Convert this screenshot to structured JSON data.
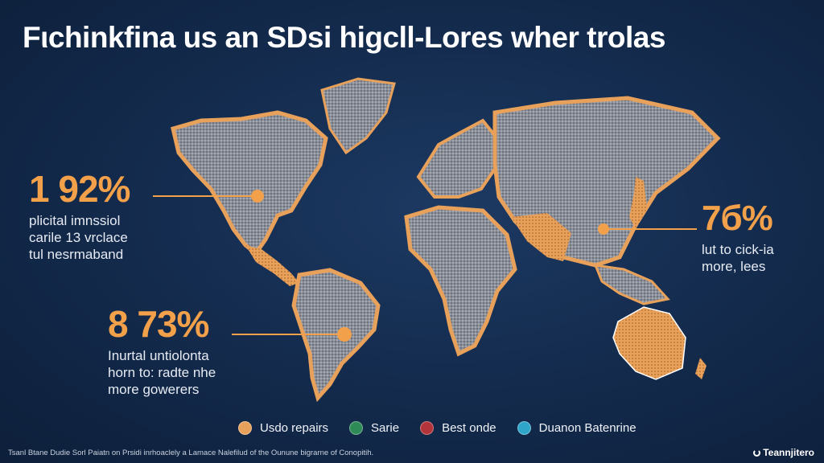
{
  "title": "Fιchinkfina us an SDsi higcll-Lores wher trolas",
  "colors": {
    "background": "#142c4f",
    "land_gray": "#8b8f99",
    "highlight_orange": "#e8a15b",
    "accent_orange": "#f2a14a",
    "legend_green": "#2e8b57",
    "legend_red": "#b3343a",
    "legend_cyan": "#2fa6c9"
  },
  "callouts": [
    {
      "value": "1 92%",
      "lines": [
        "plicital imnssiol",
        "carile 13 vrclace",
        "tul nesrmaband"
      ]
    },
    {
      "value": "8 73%",
      "lines": [
        "Inurtal untiolonta",
        "horn to: radte nhe",
        "more gowerers"
      ]
    },
    {
      "value": "7б%",
      "lines": [
        "lut to cick-ia",
        "more, lees"
      ]
    }
  ],
  "legend": [
    {
      "label": "Usdo repairs",
      "icon": "orange-dot",
      "color": "#e8a15b"
    },
    {
      "label": "Sarie",
      "icon": "green-dot",
      "color": "#2e8b57"
    },
    {
      "label": "Best onde",
      "icon": "red-dot",
      "color": "#b3343a"
    },
    {
      "label": "Duanon Batenrine",
      "icon": "cyan-dot",
      "color": "#2fa6c9"
    }
  ],
  "footer": "Tsanl Btane Dudie Sorl Paiatn on Prsidi inrhoaclely a Lamace Nalefilud of the Ounune bigrarne of Conopitih.",
  "brand": "Teannjitero"
}
